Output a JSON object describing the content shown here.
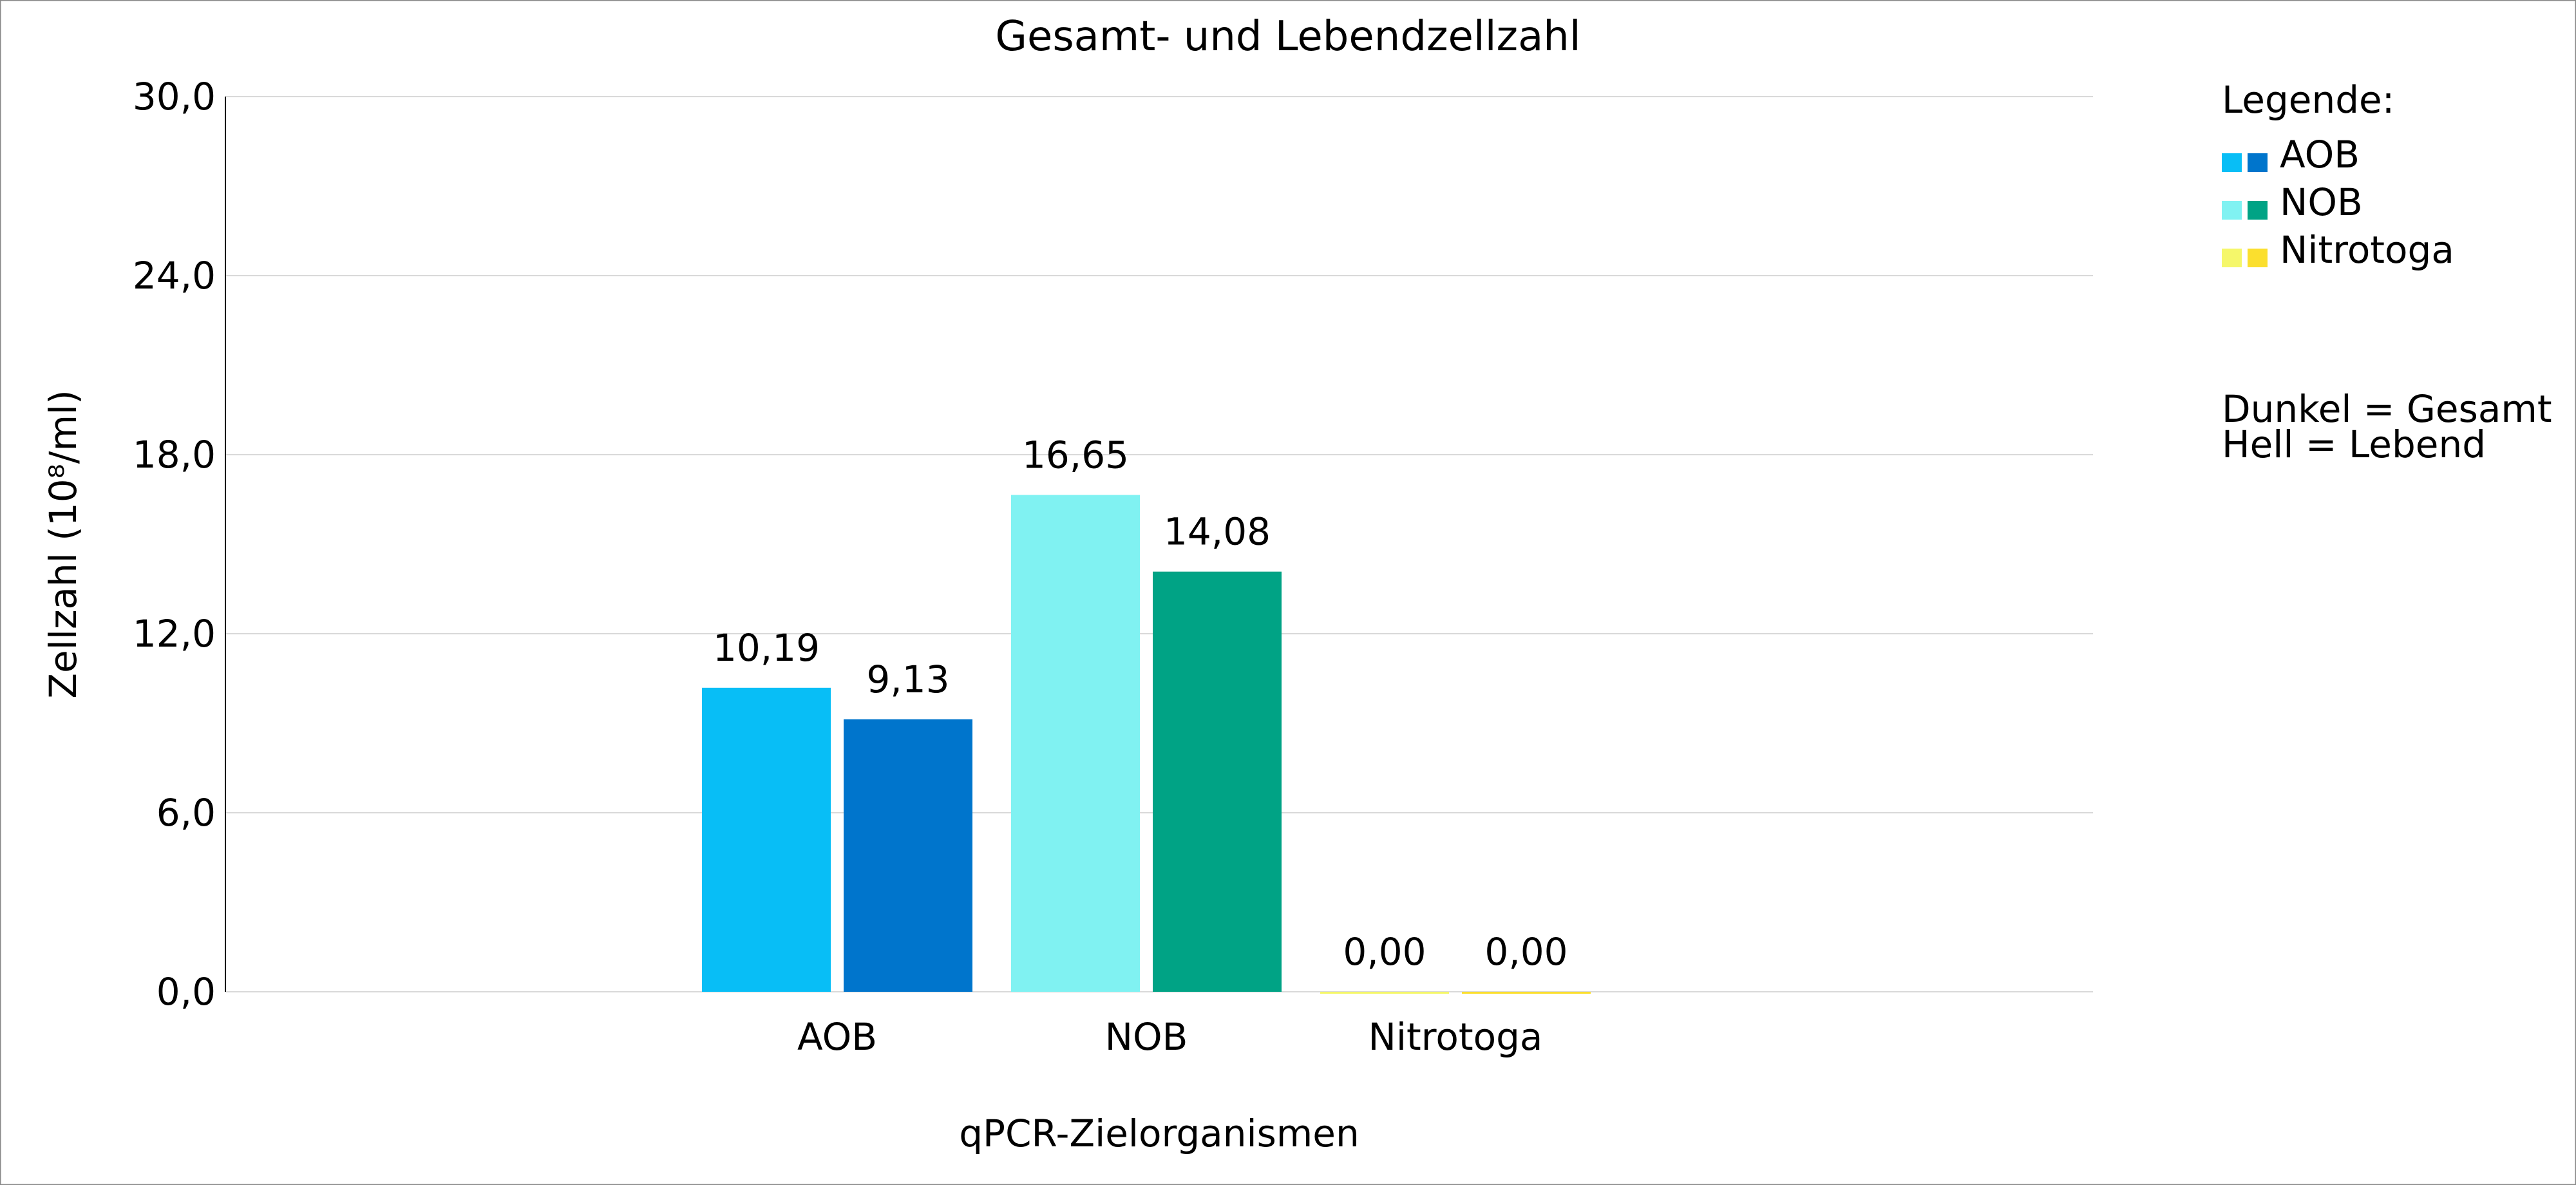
{
  "chart_data": {
    "type": "bar",
    "title": "Gesamt- und Lebendzellzahl",
    "xlabel": "qPCR-Zielorganismen",
    "ylabel": "Zellzahl (10⁸/ml)",
    "ylim": [
      0,
      30
    ],
    "yticks": [
      0,
      6,
      12,
      18,
      24,
      30
    ],
    "ytick_labels": [
      "0,0",
      "6,0",
      "12,0",
      "18,0",
      "24,0",
      "30,0"
    ],
    "grid": true,
    "categories": [
      "AOB",
      "NOB",
      "Nitrotoga"
    ],
    "series": [
      {
        "name": "Hell = Lebend",
        "values": [
          10.19,
          16.65,
          0.0
        ],
        "labels": [
          "10,19",
          "16,65",
          "0,00"
        ],
        "colors": [
          "#08BEF6",
          "#80F2F2",
          "#F5F76A"
        ]
      },
      {
        "name": "Dunkel = Gesamt",
        "values": [
          9.13,
          14.08,
          0.0
        ],
        "labels": [
          "9,13",
          "14,08",
          "0,00"
        ],
        "colors": [
          "#0075CC",
          "#00A385",
          "#FBDF2E"
        ]
      }
    ],
    "legend": {
      "placement": "right",
      "title": "Legende:",
      "entries": [
        {
          "label": "AOB",
          "light": "#08BEF6",
          "dark": "#0075CC"
        },
        {
          "label": "NOB",
          "light": "#80F2F2",
          "dark": "#00A385"
        },
        {
          "label": "Nitrotoga",
          "light": "#F5F76A",
          "dark": "#FBDF2E"
        }
      ],
      "note_dark": "Dunkel = Gesamt",
      "note_light": "Hell = Lebend"
    }
  }
}
